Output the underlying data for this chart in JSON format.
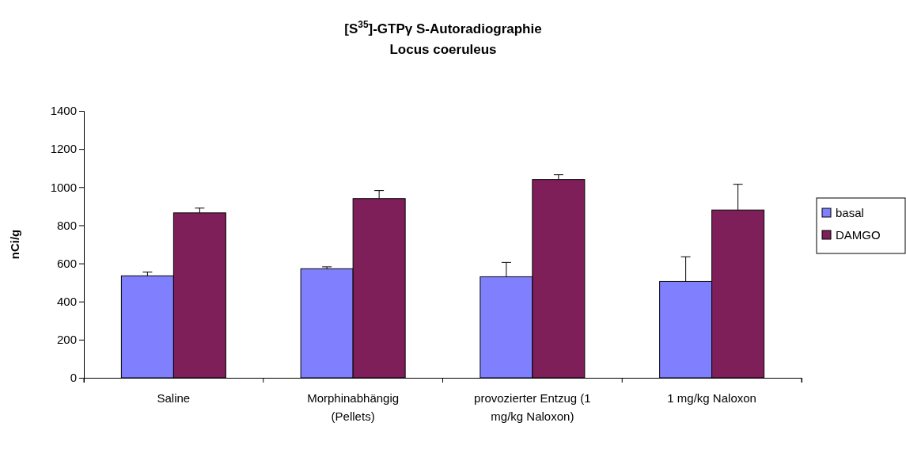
{
  "chart_data": {
    "type": "bar",
    "title": "[S$^{35}$]-GTPγ S-Autoradiographie",
    "subtitle": "Locus coeruleus",
    "ylabel": "nCi/g",
    "categories": [
      "Saline",
      "Morphinabhängig (Pellets)",
      "provozierter Entzug (1 mg/kg Naloxon)",
      "1 mg/kg Naloxon"
    ],
    "series": [
      {
        "name": "basal",
        "color": "#8080ff",
        "values": [
          535,
          572,
          530,
          505
        ],
        "errors": [
          [
            535,
            555
          ],
          [
            572,
            582
          ],
          [
            530,
            605
          ],
          [
            505,
            635
          ]
        ]
      },
      {
        "name": "DAMGO",
        "color": "#7f1f5a",
        "values": [
          865,
          940,
          1040,
          880
        ],
        "errors": [
          [
            865,
            890
          ],
          [
            940,
            982
          ],
          [
            1040,
            1065
          ],
          [
            880,
            1015
          ]
        ]
      }
    ],
    "ylim": [
      0,
      1400
    ],
    "yticks": [
      0,
      200,
      400,
      600,
      800,
      1000,
      1200,
      1400
    ],
    "grid": false,
    "legend": "right"
  }
}
